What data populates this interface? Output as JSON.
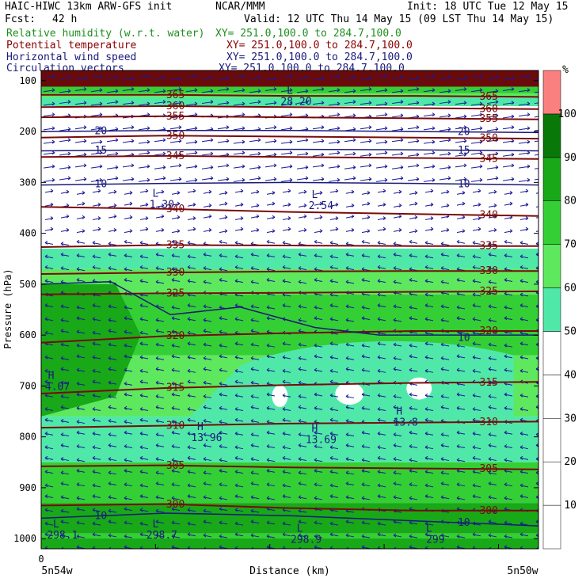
{
  "header": {
    "title": "HAIC-HIWC 13km ARW-GFS init",
    "source": "NCAR/MMM",
    "init": "Init: 18 UTC Tue 12 May 15",
    "fcst_label": "Fcst:",
    "fcst_value": "42 h",
    "valid": "Valid: 12 UTC Thu 14 May 15 (09 LST Thu 14 May 15)",
    "fields": [
      {
        "name": "Relative humidity (w.r.t. water)",
        "xy": "XY= 251.0,100.0 to 284.7,100.0",
        "color": "#1f8f1f"
      },
      {
        "name": "Potential temperature",
        "xy": "XY= 251.0,100.0 to 284.7,100.0",
        "color": "#8b0000"
      },
      {
        "name": "Horizontal wind speed",
        "xy": "XY= 251.0,100.0 to 284.7,100.0",
        "color": "#1a1a7a"
      },
      {
        "name": "Circulation vectors",
        "xy": "XY= 251.0,100.0 to 284.7,100.0",
        "color": "#1a1a7a"
      }
    ]
  },
  "chart_data": {
    "type": "heatmap",
    "ylabel": "Pressure (hPa)",
    "xlabel": "Distance (km)",
    "x_zero_label": "0",
    "x_left_label": "5n54w",
    "x_right_label": "5n50w",
    "y_ticks": [
      "100",
      "200",
      "300",
      "400",
      "500",
      "600",
      "700",
      "800",
      "900",
      "1000"
    ],
    "ylim": [
      1020,
      80
    ],
    "xlim": [
      0,
      1
    ],
    "colorbar": {
      "unit": "%",
      "levels": [
        10,
        20,
        30,
        40,
        50,
        60,
        70,
        80,
        90,
        100
      ],
      "colors": [
        "#ffffff",
        "#ffffff",
        "#ffffff",
        "#ffffff",
        "#ffffff",
        "#50e8a8",
        "#5ee85e",
        "#34cf34",
        "#18a818",
        "#087808",
        "#fa8080"
      ]
    },
    "theta_contours": [
      {
        "label": "300",
        "p": [
          935,
          932,
          940,
          945,
          945
        ]
      },
      {
        "label": "305",
        "p": [
          858,
          856,
          860,
          862,
          864
        ]
      },
      {
        "label": "310",
        "p": [
          782,
          778,
          774,
          772,
          770
        ]
      },
      {
        "label": "315",
        "p": [
          715,
          704,
          698,
          694,
          692
        ]
      },
      {
        "label": "320",
        "p": [
          615,
          602,
          596,
          592,
          592
        ]
      },
      {
        "label": "325",
        "p": [
          520,
          518,
          517,
          515,
          514
        ]
      },
      {
        "label": "330",
        "p": [
          480,
          477,
          475,
          474,
          474
        ]
      },
      {
        "label": "335",
        "p": [
          427,
          423,
          424,
          425,
          425
        ]
      },
      {
        "label": "340",
        "p": [
          348,
          352,
          358,
          362,
          366
        ]
      },
      {
        "label": "345",
        "p": [
          250,
          248,
          250,
          252,
          254
        ]
      },
      {
        "label": "350",
        "p": [
          212,
          208,
          210,
          212,
          214
        ]
      },
      {
        "label": "355",
        "p": [
          172,
          170,
          172,
          174,
          176
        ]
      },
      {
        "label": "360",
        "p": [
          152,
          150,
          152,
          154,
          156
        ]
      },
      {
        "label": "365",
        "p": [
          128,
          128,
          130,
          130,
          132
        ]
      }
    ],
    "wind_contours": [
      {
        "label": "10",
        "p": [
          960,
          950,
          955,
          965,
          975
        ]
      },
      {
        "label": "10",
        "p": [
          305,
          302,
          300,
          302,
          305
        ]
      },
      {
        "label": "15",
        "p": [
          238,
          236,
          235,
          236,
          238
        ]
      },
      {
        "label": "20",
        "p": [
          200,
          198,
          198,
          200,
          202
        ]
      }
    ],
    "rh_contours": [
      {
        "label": "10",
        "x": [
          0,
          0.14,
          0.26,
          0.4,
          0.55,
          0.68,
          1
        ],
        "p": [
          500,
          495,
          560,
          545,
          585,
          600,
          600
        ]
      }
    ],
    "extrema": [
      {
        "kind": "L",
        "value": "1.30",
        "x": 0.23,
        "p": 350
      },
      {
        "kind": "L",
        "value": "2.54",
        "x": 0.55,
        "p": 352
      },
      {
        "kind": "L",
        "value": "28.20",
        "x": 0.5,
        "p": 148
      },
      {
        "kind": "H",
        "value": "4.07",
        "x": 0.02,
        "p": 708
      },
      {
        "kind": "H",
        "value": "13.96",
        "x": 0.32,
        "p": 808
      },
      {
        "kind": "H",
        "value": "13.69",
        "x": 0.55,
        "p": 812
      },
      {
        "kind": "H",
        "value": "13.8",
        "x": 0.72,
        "p": 778
      },
      {
        "kind": "L",
        "value": "298.1",
        "x": 0.03,
        "p": 1000
      },
      {
        "kind": "L",
        "value": "298.7",
        "x": 0.23,
        "p": 1000
      },
      {
        "kind": "L",
        "value": "298.9",
        "x": 0.52,
        "p": 1008
      },
      {
        "kind": "L",
        "value": "299",
        "x": 0.78,
        "p": 1008
      }
    ]
  }
}
